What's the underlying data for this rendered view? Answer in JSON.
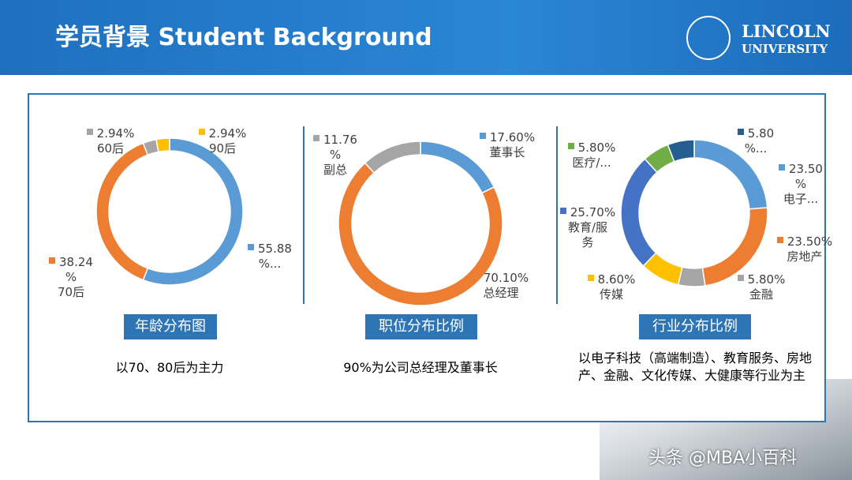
{
  "header": {
    "title": "学员背景 Student Background",
    "logo": [
      "LINCOLN",
      "UNIVERSITY"
    ]
  },
  "chart_data": [
    {
      "type": "pie",
      "title": "年龄分布图",
      "note": "以70、80后为主力",
      "categories": [
        null,
        "70后",
        "60后",
        "90后"
      ],
      "values": [
        55.88,
        38.24,
        2.94,
        2.94
      ],
      "value_labels": [
        "55.88\n%...",
        "38.24\n%",
        "2.94%",
        "2.94%"
      ],
      "colors": [
        "#5b9bd5",
        "#ed7d31",
        "#a5a5a5",
        "#ffc000"
      ]
    },
    {
      "type": "pie",
      "title": "职位分布比例",
      "note": "90%为公司总经理及董事长",
      "categories": [
        "董事长",
        "总经理",
        "副总"
      ],
      "values": [
        17.6,
        70.1,
        11.76
      ],
      "value_labels": [
        "17.60%",
        "70.10%",
        "11.76\n%"
      ],
      "colors": [
        "#5b9bd5",
        "#ed7d31",
        "#a5a5a5"
      ]
    },
    {
      "type": "pie",
      "title": "行业分布比例",
      "note": "以电子科技（高端制造）、教育服务、房地产、金融、文化传媒、大健康等行业为主",
      "categories": [
        "电子...",
        "房地产",
        "金融",
        "传媒",
        "教育/服务",
        "医疗/...",
        null
      ],
      "values": [
        23.5,
        23.5,
        5.8,
        8.6,
        25.7,
        5.8,
        5.8
      ],
      "value_labels": [
        "23.50\n%",
        "23.50%",
        "5.80%",
        "8.60%",
        "25.70%",
        "5.80%",
        "5.80\n%..."
      ],
      "colors": [
        "#5b9bd5",
        "#ed7d31",
        "#a5a5a5",
        "#ffc000",
        "#4472c4",
        "#70ad47",
        "#255e91"
      ]
    }
  ],
  "watermark": "头条 @MBA小百科"
}
